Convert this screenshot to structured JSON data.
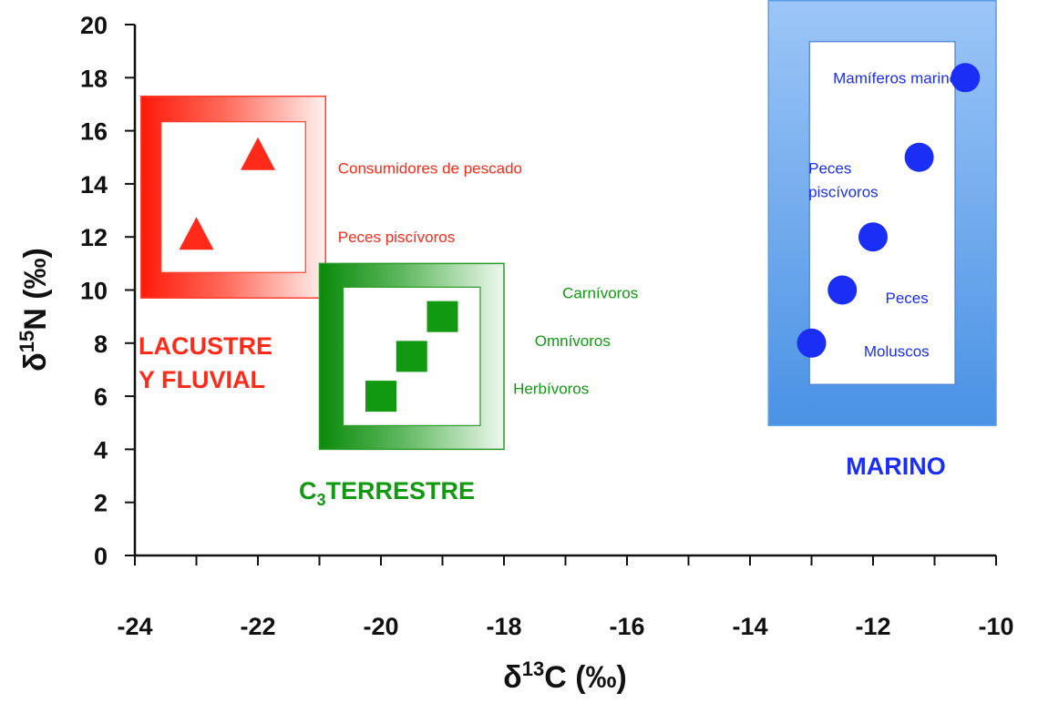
{
  "chart_data": {
    "type": "scatter",
    "title": "",
    "xlabel": "δ13C (‰)",
    "ylabel": "δ15N (‰)",
    "xlabel_parts": {
      "pre": "δ",
      "sup": "13",
      "post": "C (‰)"
    },
    "ylabel_parts": {
      "pre": "δ",
      "sup": "15",
      "post": "N (‰)"
    },
    "xlim": [
      -24,
      -10
    ],
    "ylim": [
      0,
      20
    ],
    "x_ticks": [
      -24,
      -22,
      -20,
      -18,
      -16,
      -14,
      -12,
      -10
    ],
    "y_ticks": [
      0,
      2,
      4,
      6,
      8,
      10,
      12,
      14,
      16,
      18,
      20
    ],
    "grid": false,
    "groups": [
      {
        "label_lines": [
          "LACUSTRE",
          "Y FLUVIAL"
        ],
        "color": "#ff2a1a",
        "marker": "triangle",
        "region": {
          "x": [
            -23.9,
            -20.9
          ],
          "y": [
            9.7,
            17.3
          ]
        },
        "points": [
          {
            "x": -23.0,
            "y": 12.0
          },
          {
            "x": -22.0,
            "y": 15.0
          }
        ],
        "annotations": [
          {
            "text": "Consumidores de pescado",
            "x": -20.7,
            "y": 14.6
          },
          {
            "text": "Peces piscívoros",
            "x": -20.7,
            "y": 12.0
          }
        ]
      },
      {
        "label_parts": {
          "pre": "C",
          "sub": "3",
          "post": "TERRESTRE"
        },
        "color": "#119911",
        "marker": "square",
        "region": {
          "x": [
            -21.0,
            -18.0
          ],
          "y": [
            4.0,
            11.0
          ]
        },
        "points": [
          {
            "x": -20.0,
            "y": 6.0
          },
          {
            "x": -19.5,
            "y": 7.5
          },
          {
            "x": -19.0,
            "y": 9.0
          }
        ],
        "annotations": [
          {
            "text": "Carnívoros",
            "x": -17.05,
            "y": 9.9
          },
          {
            "text": "Omnívoros",
            "x": -17.5,
            "y": 8.1
          },
          {
            "text": "Herbívoros",
            "x": -17.85,
            "y": 6.3
          }
        ]
      },
      {
        "label": "MARINO",
        "color": "#1a2ef5",
        "marker": "circle",
        "region": {
          "x": [
            -13.7,
            -10.0
          ],
          "y": [
            4.9,
            20.9
          ]
        },
        "points": [
          {
            "x": -13.0,
            "y": 8.0
          },
          {
            "x": -12.5,
            "y": 10.0
          },
          {
            "x": -12.0,
            "y": 12.0
          },
          {
            "x": -11.25,
            "y": 15.0
          },
          {
            "x": -10.5,
            "y": 18.0
          }
        ],
        "annotations": [
          {
            "text": "Mamíferos marinos",
            "x": -12.65,
            "y": 18.0
          },
          {
            "text": "Peces",
            "x": -13.05,
            "y": 14.6
          },
          {
            "text": "piscívoros",
            "x": -13.05,
            "y": 13.7
          },
          {
            "text": "Peces",
            "x": -11.8,
            "y": 9.7
          },
          {
            "text": "Moluscos",
            "x": -12.15,
            "y": 7.7
          }
        ]
      }
    ]
  }
}
